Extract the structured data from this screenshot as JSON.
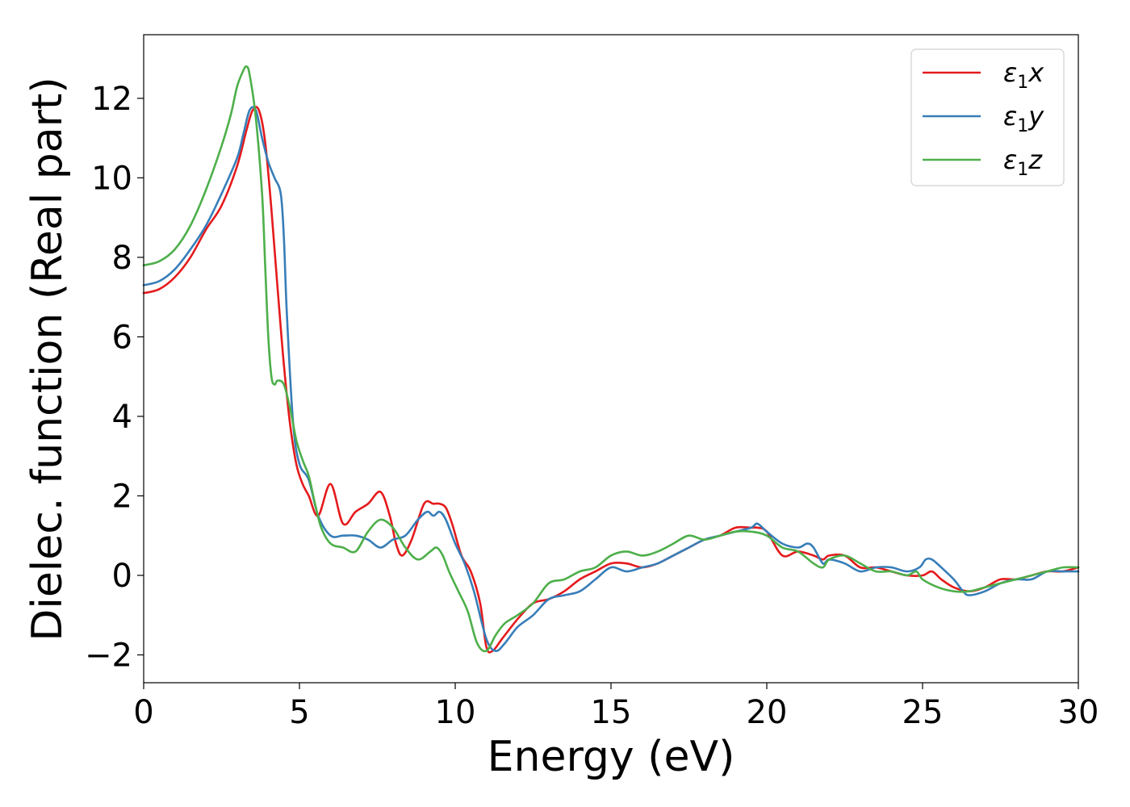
{
  "chart_data": {
    "type": "line",
    "title": "",
    "xlabel": "Energy (eV)",
    "ylabel": "Dielec. function (Real part)",
    "xlim": [
      0,
      30
    ],
    "ylim": [
      -2.7,
      13.6
    ],
    "x_ticks": [
      0,
      5,
      10,
      15,
      20,
      25,
      30
    ],
    "y_ticks": [
      -2,
      0,
      2,
      4,
      6,
      8,
      10,
      12
    ],
    "x_tick_labels": [
      "0",
      "5",
      "10",
      "15",
      "20",
      "25",
      "30"
    ],
    "y_tick_labels": [
      "−2",
      "0",
      "2",
      "4",
      "6",
      "8",
      "10",
      "12"
    ],
    "grid": false,
    "legend_position": "top-right",
    "series": [
      {
        "name": "ε1x",
        "label_base": "ε",
        "label_sub": "1",
        "label_var": "x",
        "color": "#e41a1c",
        "x": [
          0,
          0.5,
          1,
          1.5,
          2,
          2.5,
          3,
          3.3,
          3.5,
          3.7,
          3.9,
          4.1,
          4.3,
          4.5,
          4.7,
          4.9,
          5.1,
          5.3,
          5.6,
          6,
          6.4,
          6.8,
          7.2,
          7.6,
          7.9,
          8.1,
          8.3,
          8.6,
          9,
          9.3,
          9.5,
          9.7,
          9.9,
          10.2,
          10.5,
          10.8,
          11,
          11.2,
          11.5,
          12,
          12.5,
          13,
          13.5,
          14,
          14.5,
          15,
          15.5,
          16,
          16.5,
          17,
          17.5,
          18,
          18.5,
          19,
          19.5,
          19.7,
          20,
          20.5,
          21,
          21.5,
          21.8,
          22,
          22.5,
          23,
          23.5,
          24,
          24.5,
          25,
          25.3,
          25.6,
          26,
          26.5,
          27,
          27.5,
          28,
          28.5,
          29,
          29.5,
          30
        ],
        "y": [
          7.1,
          7.2,
          7.5,
          8.0,
          8.7,
          9.3,
          10.3,
          11.2,
          11.7,
          11.7,
          10.9,
          9.2,
          7.2,
          5.3,
          3.8,
          2.8,
          2.3,
          2.0,
          1.5,
          2.3,
          1.3,
          1.6,
          1.8,
          2.1,
          1.5,
          0.8,
          0.5,
          0.9,
          1.8,
          1.8,
          1.8,
          1.7,
          1.3,
          0.5,
          0.1,
          -0.7,
          -1.8,
          -1.9,
          -1.6,
          -1.1,
          -0.7,
          -0.6,
          -0.4,
          -0.1,
          0.1,
          0.3,
          0.3,
          0.2,
          0.3,
          0.5,
          0.7,
          0.9,
          1.0,
          1.2,
          1.2,
          1.2,
          1.1,
          0.5,
          0.6,
          0.5,
          0.4,
          0.5,
          0.5,
          0.2,
          0.2,
          0.1,
          0.0,
          0.0,
          0.1,
          -0.1,
          -0.3,
          -0.4,
          -0.3,
          -0.1,
          -0.1,
          0.0,
          0.1,
          0.1,
          0.2
        ]
      },
      {
        "name": "ε1y",
        "label_base": "ε",
        "label_sub": "1",
        "label_var": "y",
        "color": "#377eb8",
        "x": [
          0,
          0.5,
          1,
          1.5,
          2,
          2.5,
          3,
          3.2,
          3.4,
          3.6,
          3.8,
          4,
          4.2,
          4.4,
          4.5,
          4.6,
          4.8,
          5,
          5.3,
          5.6,
          6,
          6.4,
          6.8,
          7.2,
          7.6,
          8,
          8.4,
          8.8,
          9.1,
          9.3,
          9.5,
          9.7,
          10,
          10.3,
          10.6,
          11,
          11.3,
          11.6,
          12,
          12.5,
          13,
          13.5,
          14,
          14.5,
          15,
          15.5,
          16,
          16.5,
          17,
          17.5,
          18,
          18.5,
          19,
          19.5,
          19.7,
          20,
          20.5,
          21,
          21.3,
          21.5,
          21.8,
          22,
          22.5,
          23,
          23.5,
          24,
          24.5,
          24.9,
          25.1,
          25.3,
          25.6,
          26,
          26.3,
          26.5,
          27,
          27.5,
          28,
          28.5,
          29,
          29.5,
          30
        ],
        "y": [
          7.3,
          7.4,
          7.7,
          8.2,
          8.8,
          9.6,
          10.5,
          11.1,
          11.7,
          11.7,
          11.0,
          10.4,
          10.0,
          9.6,
          8.5,
          6.5,
          3.8,
          2.8,
          2.4,
          1.5,
          1.0,
          1.0,
          1.0,
          0.9,
          0.7,
          0.9,
          1.0,
          1.4,
          1.6,
          1.5,
          1.6,
          1.4,
          0.8,
          0.3,
          -0.4,
          -1.6,
          -1.9,
          -1.7,
          -1.3,
          -1.0,
          -0.6,
          -0.5,
          -0.4,
          -0.1,
          0.2,
          0.1,
          0.2,
          0.3,
          0.5,
          0.7,
          0.9,
          1.0,
          1.1,
          1.2,
          1.3,
          1.1,
          0.8,
          0.7,
          0.8,
          0.7,
          0.3,
          0.4,
          0.3,
          0.1,
          0.2,
          0.2,
          0.1,
          0.2,
          0.4,
          0.4,
          0.2,
          -0.1,
          -0.4,
          -0.5,
          -0.4,
          -0.2,
          -0.1,
          -0.1,
          0.1,
          0.1,
          0.1
        ]
      },
      {
        "name": "ε1z",
        "label_base": "ε",
        "label_sub": "1",
        "label_var": "z",
        "color": "#4daf4a",
        "x": [
          0,
          0.5,
          1,
          1.5,
          2,
          2.5,
          2.8,
          3,
          3.2,
          3.3,
          3.4,
          3.6,
          3.8,
          3.9,
          4,
          4.1,
          4.2,
          4.3,
          4.5,
          4.7,
          4.9,
          5.1,
          5.3,
          5.5,
          5.7,
          6,
          6.4,
          6.8,
          7.2,
          7.6,
          8,
          8.4,
          8.8,
          9.2,
          9.4,
          9.6,
          9.8,
          10.1,
          10.4,
          10.7,
          11,
          11.3,
          11.6,
          12,
          12.5,
          13,
          13.5,
          14,
          14.5,
          15,
          15.5,
          16,
          16.5,
          17,
          17.5,
          18,
          18.5,
          19,
          19.5,
          20,
          20.5,
          21,
          21.5,
          21.8,
          22,
          22.5,
          23,
          23.5,
          24,
          24.5,
          24.8,
          25,
          25.5,
          26,
          26.5,
          27,
          27.5,
          28,
          28.5,
          29,
          29.5,
          30
        ],
        "y": [
          7.8,
          7.9,
          8.2,
          8.8,
          9.7,
          10.8,
          11.6,
          12.3,
          12.7,
          12.8,
          12.6,
          11.5,
          9.6,
          7.8,
          6.0,
          5.0,
          4.8,
          4.9,
          4.8,
          4.2,
          3.4,
          2.9,
          2.5,
          1.8,
          1.2,
          0.8,
          0.7,
          0.6,
          1.1,
          1.4,
          1.2,
          0.7,
          0.4,
          0.6,
          0.7,
          0.5,
          0.1,
          -0.4,
          -0.9,
          -1.7,
          -1.9,
          -1.5,
          -1.2,
          -1.0,
          -0.7,
          -0.2,
          -0.1,
          0.1,
          0.2,
          0.5,
          0.6,
          0.5,
          0.6,
          0.8,
          1.0,
          0.9,
          1.0,
          1.1,
          1.1,
          1.0,
          0.7,
          0.6,
          0.3,
          0.2,
          0.4,
          0.5,
          0.3,
          0.1,
          0.1,
          0.0,
          0.1,
          -0.1,
          -0.3,
          -0.4,
          -0.4,
          -0.3,
          -0.2,
          -0.1,
          0.0,
          0.1,
          0.2,
          0.2
        ]
      }
    ]
  }
}
